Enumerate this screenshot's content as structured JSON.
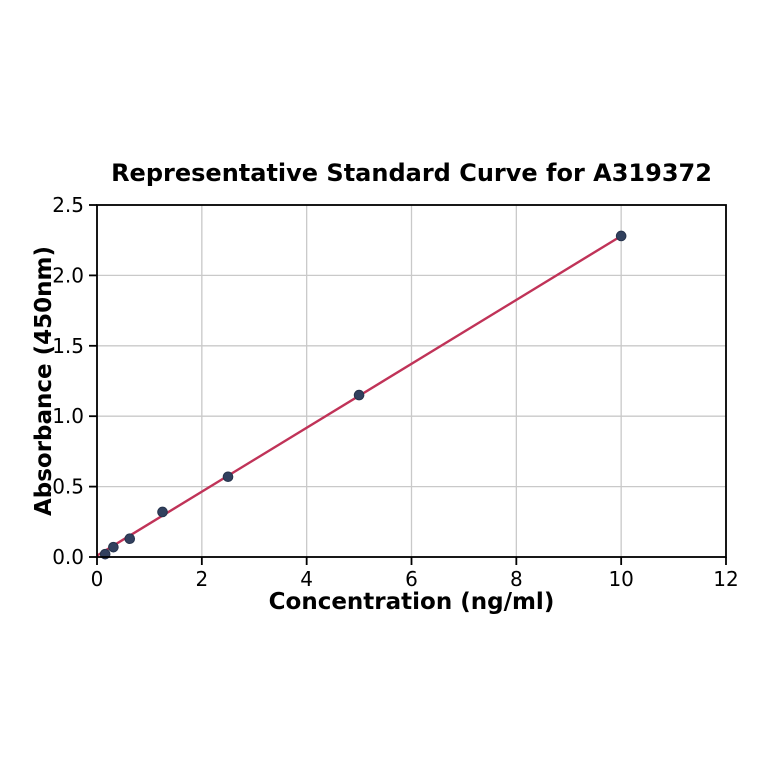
{
  "chart_data": {
    "type": "scatter",
    "title": "Representative Standard Curve for A319372",
    "xlabel": "Concentration (ng/ml)",
    "ylabel": "Absorbance (450nm)",
    "xlim": [
      0,
      12
    ],
    "ylim": [
      0,
      2.5
    ],
    "grid": true,
    "legend": false,
    "xticks": {
      "values": [
        0,
        2,
        4,
        6,
        8,
        10,
        12
      ],
      "labels": [
        "0",
        "2",
        "4",
        "6",
        "8",
        "10",
        "12"
      ]
    },
    "yticks": {
      "values": [
        0,
        0.5,
        1.0,
        1.5,
        2.0,
        2.5
      ],
      "labels": [
        "0.0",
        "0.5",
        "1.0",
        "1.5",
        "2.0",
        "2.5"
      ]
    },
    "points": {
      "x": [
        0.156,
        0.3125,
        0.625,
        1.25,
        2.5,
        5,
        10
      ],
      "y": [
        0.02,
        0.07,
        0.13,
        0.32,
        0.57,
        1.15,
        2.28
      ]
    },
    "fit_line": {
      "x": [
        0,
        10
      ],
      "y": [
        0.01,
        2.28
      ]
    },
    "colors": {
      "marker": "#31405e",
      "marker_edge": "#26334c",
      "line": "#c03358",
      "grid": "#c9c9c9",
      "axis": "#000000",
      "background": "#ffffff"
    }
  }
}
